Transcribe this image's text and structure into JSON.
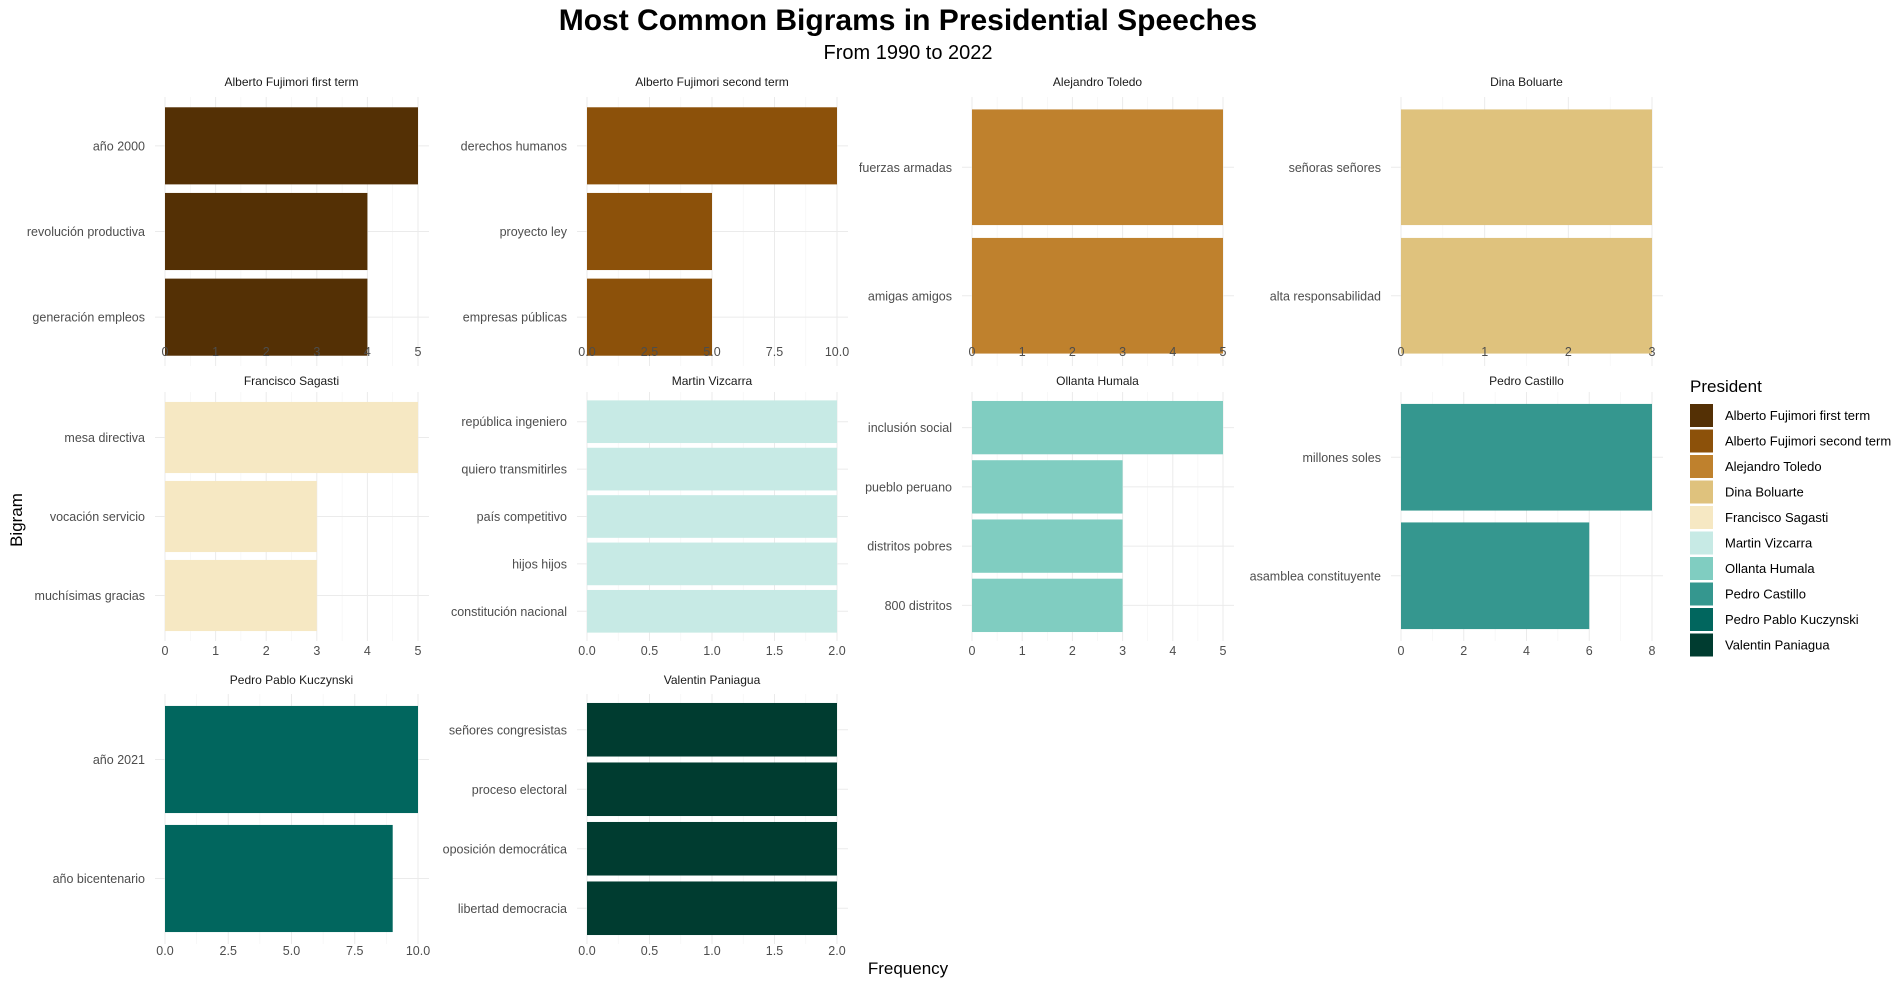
{
  "chart_data": {
    "type": "bar",
    "orientation": "horizontal",
    "title": "Most Common Bigrams in Presidential Speeches",
    "subtitle": "From 1990 to 2022",
    "xlabel": "Frequency",
    "ylabel": "Bigram",
    "grid": true,
    "legend": {
      "title": "President",
      "position": "right",
      "entries": [
        {
          "name": "Alberto Fujimori first term",
          "color": "#543005"
        },
        {
          "name": "Alberto Fujimori second term",
          "color": "#8C510A"
        },
        {
          "name": "Alejandro Toledo",
          "color": "#BF812D"
        },
        {
          "name": "Dina Boluarte",
          "color": "#DFC27D"
        },
        {
          "name": "Francisco Sagasti",
          "color": "#F6E8C3"
        },
        {
          "name": "Martin Vizcarra",
          "color": "#C7EAE5"
        },
        {
          "name": "Ollanta Humala",
          "color": "#80CDC1"
        },
        {
          "name": "Pedro Castillo",
          "color": "#35978F"
        },
        {
          "name": "Pedro Pablo Kuczynski",
          "color": "#01665E"
        },
        {
          "name": "Valentin Paniagua",
          "color": "#003C30"
        }
      ]
    },
    "panels": [
      {
        "strip": "Alberto Fujimori first term",
        "color": "#543005",
        "categories": [
          "año 2000",
          "revolución productiva",
          "generación empleos"
        ],
        "values": [
          5,
          4,
          4
        ],
        "xlim": [
          0,
          5
        ],
        "ticks": [
          "0",
          "1",
          "2",
          "3",
          "4",
          "5"
        ]
      },
      {
        "strip": "Alberto Fujimori second term",
        "color": "#8C510A",
        "categories": [
          "derechos humanos",
          "proyecto ley",
          "empresas públicas"
        ],
        "values": [
          10,
          5,
          5
        ],
        "xlim": [
          0,
          10
        ],
        "ticks": [
          "0.0",
          "2.5",
          "5.0",
          "7.5",
          "10.0"
        ]
      },
      {
        "strip": "Alejandro Toledo",
        "color": "#BF812D",
        "categories": [
          "fuerzas armadas",
          "amigas amigos"
        ],
        "values": [
          5,
          5
        ],
        "xlim": [
          0,
          5
        ],
        "ticks": [
          "0",
          "1",
          "2",
          "3",
          "4",
          "5"
        ]
      },
      {
        "strip": "Dina Boluarte",
        "color": "#DFC27D",
        "categories": [
          "señoras señores",
          "alta responsabilidad"
        ],
        "values": [
          3,
          3
        ],
        "xlim": [
          0,
          3
        ],
        "ticks": [
          "0",
          "1",
          "2",
          "3"
        ]
      },
      {
        "strip": "Francisco Sagasti",
        "color": "#F6E8C3",
        "categories": [
          "mesa directiva",
          "vocación servicio",
          "muchísimas gracias"
        ],
        "values": [
          5,
          3,
          3
        ],
        "xlim": [
          0,
          5
        ],
        "ticks": [
          "0",
          "1",
          "2",
          "3",
          "4",
          "5"
        ]
      },
      {
        "strip": "Martin Vizcarra",
        "color": "#C7EAE5",
        "categories": [
          "república ingeniero",
          "quiero transmitirles",
          "país competitivo",
          "hijos hijos",
          "constitución nacional"
        ],
        "values": [
          2,
          2,
          2,
          2,
          2
        ],
        "xlim": [
          0,
          2
        ],
        "ticks": [
          "0.0",
          "0.5",
          "1.0",
          "1.5",
          "2.0"
        ]
      },
      {
        "strip": "Ollanta Humala",
        "color": "#80CDC1",
        "categories": [
          "inclusión social",
          "pueblo peruano",
          "distritos pobres",
          "800 distritos"
        ],
        "values": [
          5,
          3,
          3,
          3
        ],
        "xlim": [
          0,
          5
        ],
        "ticks": [
          "0",
          "1",
          "2",
          "3",
          "4",
          "5"
        ]
      },
      {
        "strip": "Pedro Castillo",
        "color": "#35978F",
        "categories": [
          "millones soles",
          "asamblea constituyente"
        ],
        "values": [
          8,
          6
        ],
        "xlim": [
          0,
          8
        ],
        "ticks": [
          "0",
          "2",
          "4",
          "6",
          "8"
        ]
      },
      {
        "strip": "Pedro Pablo Kuczynski",
        "color": "#01665E",
        "categories": [
          "año 2021",
          "año bicentenario"
        ],
        "values": [
          10,
          9
        ],
        "xlim": [
          0,
          10
        ],
        "ticks": [
          "0.0",
          "2.5",
          "5.0",
          "7.5",
          "10.0"
        ]
      },
      {
        "strip": "Valentin Paniagua",
        "color": "#003C30",
        "categories": [
          "señores congresistas",
          "proceso electoral",
          "oposición democrática",
          "libertad democracia"
        ],
        "values": [
          2,
          2,
          2,
          2
        ],
        "xlim": [
          0,
          2
        ],
        "ticks": [
          "0.0",
          "0.5",
          "1.0",
          "1.5",
          "2.0"
        ]
      }
    ]
  }
}
